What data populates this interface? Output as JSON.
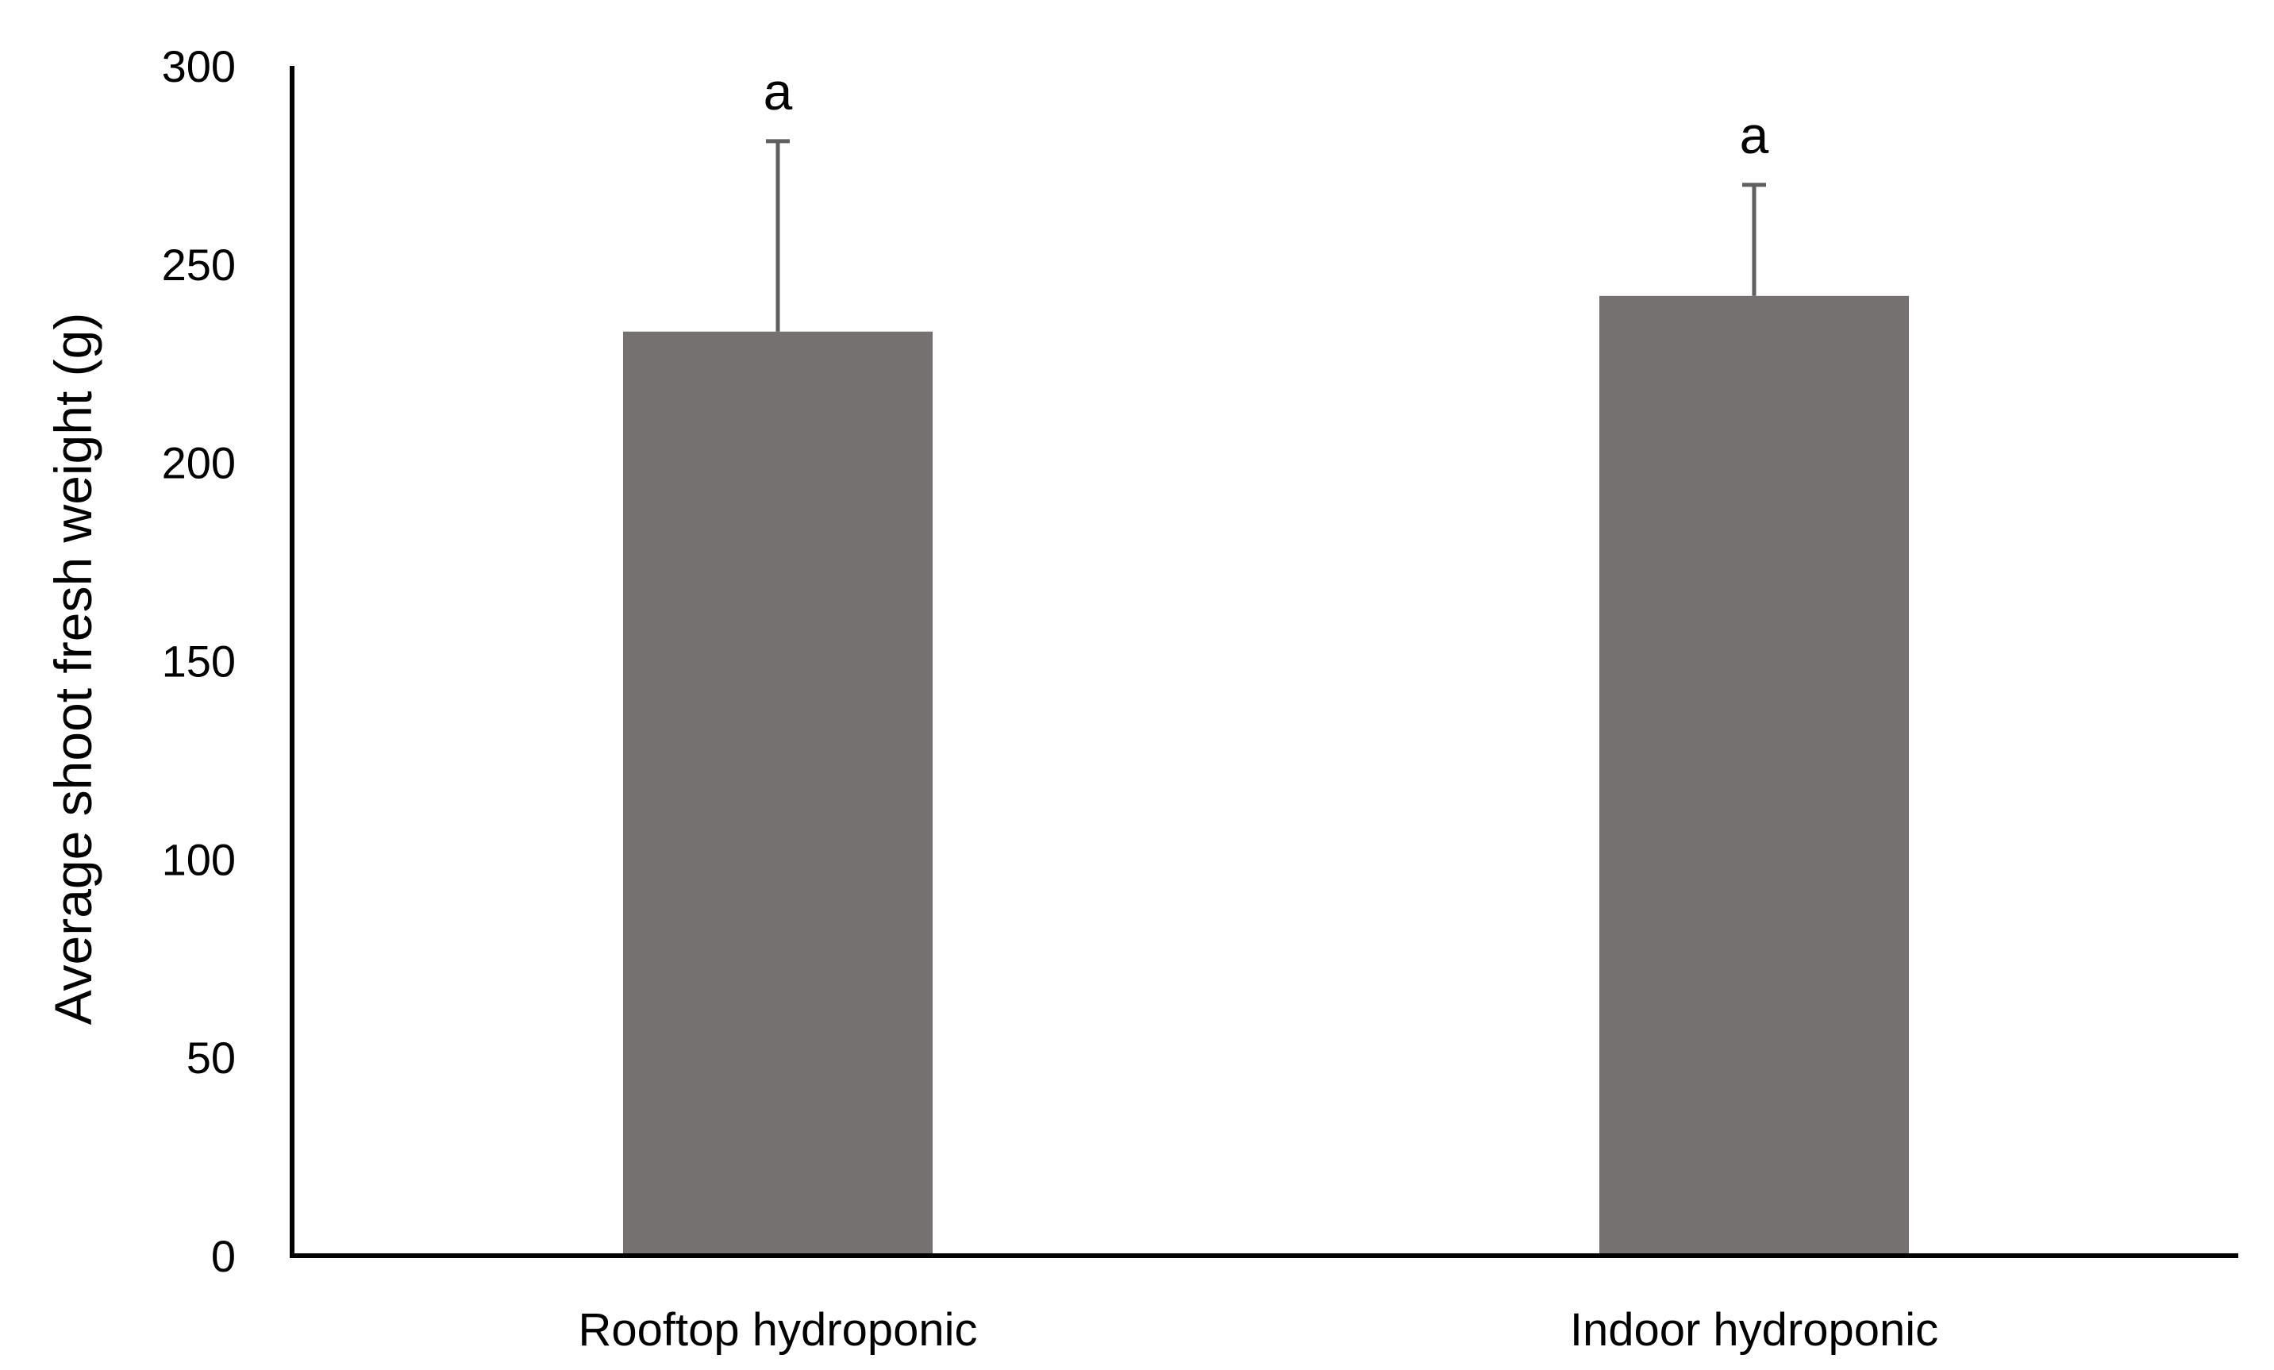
{
  "chart_data": {
    "type": "bar",
    "title": "",
    "xlabel": "",
    "ylabel": "Average shoot fresh weight (g)",
    "categories": [
      "Rooftop hydroponic",
      "Indoor hydroponic"
    ],
    "values": [
      233,
      242
    ],
    "error_upper": [
      48,
      28
    ],
    "significance_letters": [
      "a",
      "a"
    ],
    "ylim": [
      0,
      300
    ],
    "yticks": [
      0,
      50,
      100,
      150,
      200,
      250,
      300
    ],
    "grid": false,
    "legend": "none",
    "bar_color": "#757170",
    "axis_color": "#000000",
    "errorbar_color": "#5f5f5f"
  }
}
